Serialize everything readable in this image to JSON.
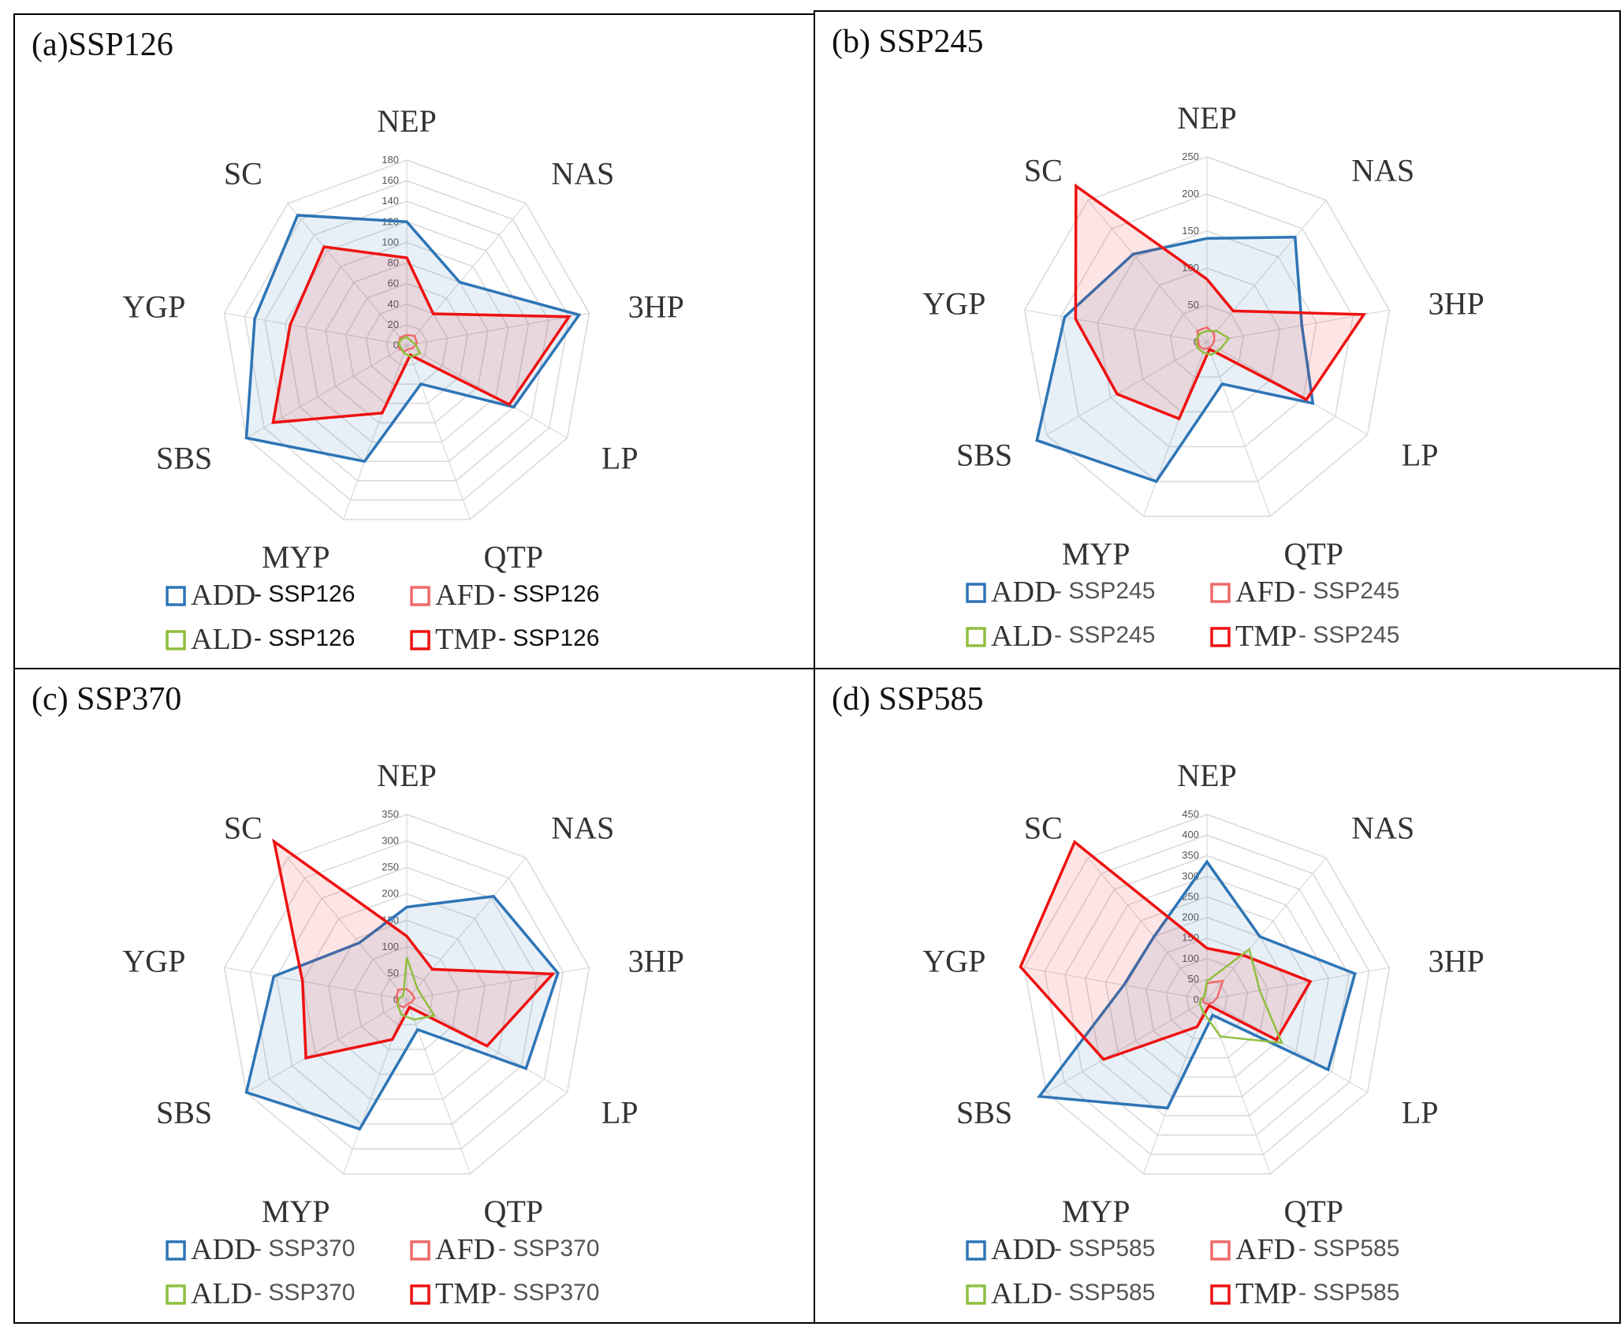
{
  "colors": {
    "ADD": "#2e75b6",
    "AFD": "#ee6b6b",
    "ALD": "#8fbf40",
    "ALD_dark": "#5a8a2b",
    "TMP": "#ee1111",
    "grid": "#d9d9d9",
    "panel_border": "#000000"
  },
  "chart_data": [
    {
      "type": "radar",
      "title": "(a)SSP126",
      "axes": [
        "NEP",
        "NAS",
        "3HP",
        "LP",
        "QTP",
        "MYP",
        "SBS",
        "YGP",
        "SC"
      ],
      "rmax": 180,
      "ticks": [
        0,
        20,
        40,
        60,
        80,
        100,
        120,
        140,
        160,
        180
      ],
      "tick_labels": [
        "0",
        "20",
        "40",
        "60",
        "80",
        "100",
        "120",
        "140",
        "160",
        "180"
      ],
      "series": [
        {
          "name": "ADD",
          "values": [
            120,
            80,
            170,
            120,
            40,
            120,
            180,
            150,
            165
          ],
          "fill": true
        },
        {
          "name": "TMP",
          "values": [
            85,
            40,
            160,
            115,
            10,
            70,
            150,
            115,
            125
          ],
          "fill": true
        },
        {
          "name": "AFD",
          "values": [
            10,
            12,
            10,
            6,
            4,
            6,
            8,
            8,
            10
          ],
          "fill": false
        },
        {
          "name": "ALD",
          "values": [
            8,
            6,
            8,
            15,
            12,
            8,
            6,
            8,
            8
          ],
          "fill": false
        }
      ],
      "legend": [
        {
          "key": "ADD",
          "label": "ADD",
          "suffix": "- SSP126"
        },
        {
          "key": "AFD",
          "label": "AFD",
          "suffix": "- SSP126"
        },
        {
          "key": "ALD",
          "label": "ALD",
          "suffix": "- SSP126"
        },
        {
          "key": "TMP",
          "label": "TMP",
          "suffix": "- SSP126"
        }
      ]
    },
    {
      "type": "radar",
      "title": "(b) SSP245",
      "axes": [
        "NEP",
        "NAS",
        "3HP",
        "LP",
        "QTP",
        "MYP",
        "SBS",
        "YGP",
        "SC"
      ],
      "rmax": 250,
      "ticks": [
        0,
        50,
        100,
        150,
        200,
        250
      ],
      "tick_labels": [
        "0",
        "50",
        "100",
        "150",
        "200",
        "250"
      ],
      "series": [
        {
          "name": "ADD",
          "values": [
            140,
            185,
            130,
            165,
            60,
            200,
            265,
            195,
            155
          ],
          "fill": true
        },
        {
          "name": "TMP",
          "values": [
            85,
            55,
            215,
            155,
            10,
            110,
            140,
            180,
            275
          ],
          "fill": true
        },
        {
          "name": "AFD",
          "values": [
            20,
            15,
            10,
            8,
            8,
            10,
            12,
            12,
            20
          ],
          "fill": false
        },
        {
          "name": "ALD",
          "values": [
            15,
            20,
            30,
            20,
            18,
            15,
            15,
            15,
            15
          ],
          "fill": false
        }
      ],
      "legend": [
        {
          "key": "ADD",
          "label": "ADD",
          "suffix": "- SSP245"
        },
        {
          "key": "AFD",
          "label": "AFD",
          "suffix": "- SSP245"
        },
        {
          "key": "ALD",
          "label": "ALD",
          "suffix": "- SSP245"
        },
        {
          "key": "TMP",
          "label": "TMP",
          "suffix": "- SSP245"
        }
      ]
    },
    {
      "type": "radar",
      "title": "(c) SSP370",
      "axes": [
        "NEP",
        "NAS",
        "3HP",
        "LP",
        "QTP",
        "MYP",
        "SBS",
        "YGP",
        "SC"
      ],
      "rmax": 350,
      "ticks": [
        0,
        50,
        100,
        150,
        200,
        250,
        300,
        350
      ],
      "tick_labels": [
        "0",
        "50",
        "100",
        "150",
        "200",
        "250",
        "300",
        "350"
      ],
      "series": [
        {
          "name": "ADD",
          "values": [
            175,
            255,
            290,
            260,
            60,
            260,
            350,
            255,
            140
          ],
          "fill": true
        },
        {
          "name": "TMP",
          "values": [
            120,
            75,
            280,
            175,
            15,
            80,
            220,
            200,
            390
          ],
          "fill": true
        },
        {
          "name": "AFD",
          "values": [
            20,
            15,
            15,
            10,
            8,
            15,
            20,
            20,
            25
          ],
          "fill": false
        },
        {
          "name": "ALD",
          "values": [
            80,
            30,
            30,
            60,
            40,
            30,
            20,
            15,
            10
          ],
          "fill": false
        }
      ],
      "legend": [
        {
          "key": "ADD",
          "label": "ADD",
          "suffix": "- SSP370"
        },
        {
          "key": "AFD",
          "label": "AFD",
          "suffix": "- SSP370"
        },
        {
          "key": "ALD",
          "label": "ALD",
          "suffix": "- SSP370"
        },
        {
          "key": "TMP",
          "label": "TMP",
          "suffix": "- SSP370"
        }
      ]
    },
    {
      "type": "radar",
      "title": "(d) SSP585",
      "axes": [
        "NEP",
        "NAS",
        "3HP",
        "LP",
        "QTP",
        "MYP",
        "SBS",
        "YGP",
        "SC"
      ],
      "rmax": 450,
      "ticks": [
        0,
        50,
        100,
        150,
        200,
        250,
        300,
        350,
        400,
        450
      ],
      "tick_labels": [
        "0",
        "50",
        "100",
        "150",
        "200",
        "250",
        "300",
        "350",
        "400",
        "450"
      ],
      "series": [
        {
          "name": "ADD",
          "values": [
            335,
            200,
            365,
            340,
            40,
            280,
            470,
            205,
            200
          ],
          "fill": true
        },
        {
          "name": "TMP",
          "values": [
            125,
            140,
            255,
            195,
            15,
            70,
            290,
            460,
            500
          ],
          "fill": true
        },
        {
          "name": "AFD",
          "values": [
            40,
            60,
            25,
            15,
            10,
            10,
            10,
            10,
            10
          ],
          "fill": false
        },
        {
          "name": "ALD",
          "values": [
            45,
            160,
            130,
            210,
            95,
            30,
            20,
            15,
            10
          ],
          "fill": false
        }
      ],
      "legend": [
        {
          "key": "ADD",
          "label": "ADD",
          "suffix": "- SSP585"
        },
        {
          "key": "AFD",
          "label": "AFD",
          "suffix": "- SSP585"
        },
        {
          "key": "ALD",
          "label": "ALD",
          "suffix": "- SSP585"
        },
        {
          "key": "TMP",
          "label": "TMP",
          "suffix": "- SSP585"
        }
      ]
    }
  ]
}
